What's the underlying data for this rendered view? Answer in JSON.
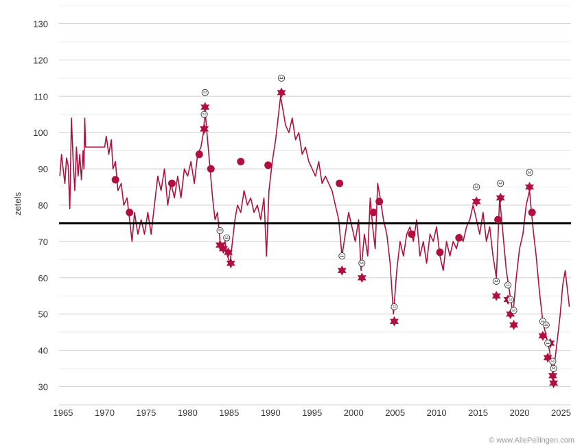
{
  "chart_data": {
    "type": "line",
    "ylabel": "zetels",
    "xlim": [
      1964.5,
      2026.2
    ],
    "ylim": [
      25,
      135
    ],
    "x_ticks": [
      1965,
      1970,
      1975,
      1980,
      1985,
      1990,
      1995,
      2000,
      2005,
      2010,
      2015,
      2020,
      2025
    ],
    "y_ticks": [
      30,
      40,
      50,
      60,
      70,
      80,
      90,
      100,
      110,
      120,
      130
    ],
    "grid": true,
    "legend": "none",
    "reference_line": {
      "value": 75,
      "color": "#000000"
    },
    "series_color": "#b0103f",
    "series": [
      {
        "points": [
          [
            1964.6,
            88
          ],
          [
            1964.8,
            94
          ],
          [
            1965.0,
            90
          ],
          [
            1965.2,
            86
          ],
          [
            1965.4,
            93
          ],
          [
            1965.6,
            91
          ],
          [
            1965.8,
            79
          ],
          [
            1966.0,
            104
          ],
          [
            1966.2,
            92
          ],
          [
            1966.4,
            84
          ],
          [
            1966.6,
            96
          ],
          [
            1966.8,
            88
          ],
          [
            1967.0,
            94
          ],
          [
            1967.2,
            87
          ],
          [
            1967.4,
            95
          ],
          [
            1967.5,
            90
          ],
          [
            1967.6,
            104
          ],
          [
            1967.7,
            96
          ],
          [
            1970.0,
            96
          ],
          [
            1970.2,
            99
          ],
          [
            1970.5,
            94
          ],
          [
            1970.8,
            98
          ],
          [
            1971.0,
            90
          ],
          [
            1971.3,
            92
          ],
          [
            1971.6,
            84
          ],
          [
            1972.0,
            86
          ],
          [
            1972.3,
            80
          ],
          [
            1972.7,
            82
          ],
          [
            1973.0,
            76
          ],
          [
            1973.3,
            70
          ],
          [
            1973.6,
            78
          ],
          [
            1974.0,
            72
          ],
          [
            1974.4,
            76
          ],
          [
            1974.8,
            72
          ],
          [
            1975.2,
            78
          ],
          [
            1975.6,
            72
          ],
          [
            1976.0,
            80
          ],
          [
            1976.4,
            88
          ],
          [
            1976.8,
            84
          ],
          [
            1977.2,
            90
          ],
          [
            1977.6,
            80
          ],
          [
            1978.0,
            86
          ],
          [
            1978.4,
            82
          ],
          [
            1978.8,
            88
          ],
          [
            1979.2,
            82
          ],
          [
            1979.6,
            90
          ],
          [
            1980.0,
            88
          ],
          [
            1980.4,
            92
          ],
          [
            1980.8,
            86
          ],
          [
            1981.2,
            94
          ],
          [
            1981.6,
            96
          ],
          [
            1981.9,
            100
          ],
          [
            1982.1,
            106
          ],
          [
            1982.4,
            98
          ],
          [
            1982.7,
            90
          ],
          [
            1983.0,
            82
          ],
          [
            1983.3,
            76
          ],
          [
            1983.6,
            78
          ],
          [
            1983.9,
            70
          ],
          [
            1984.2,
            68
          ],
          [
            1984.5,
            70
          ],
          [
            1984.8,
            66
          ],
          [
            1985.1,
            64
          ],
          [
            1985.4,
            70
          ],
          [
            1985.7,
            76
          ],
          [
            1986.0,
            80
          ],
          [
            1986.4,
            78
          ],
          [
            1986.8,
            84
          ],
          [
            1987.2,
            80
          ],
          [
            1987.6,
            82
          ],
          [
            1988.0,
            78
          ],
          [
            1988.4,
            80
          ],
          [
            1988.8,
            76
          ],
          [
            1989.2,
            82
          ],
          [
            1989.5,
            66
          ],
          [
            1989.8,
            84
          ],
          [
            1990.2,
            92
          ],
          [
            1990.6,
            98
          ],
          [
            1990.9,
            104
          ],
          [
            1991.2,
            110
          ],
          [
            1991.5,
            106
          ],
          [
            1991.8,
            102
          ],
          [
            1992.2,
            100
          ],
          [
            1992.6,
            104
          ],
          [
            1993.0,
            98
          ],
          [
            1993.4,
            100
          ],
          [
            1993.8,
            94
          ],
          [
            1994.2,
            96
          ],
          [
            1994.6,
            92
          ],
          [
            1995.0,
            90
          ],
          [
            1995.4,
            88
          ],
          [
            1995.8,
            92
          ],
          [
            1996.2,
            86
          ],
          [
            1996.6,
            88
          ],
          [
            1997.0,
            86
          ],
          [
            1997.4,
            84
          ],
          [
            1997.8,
            80
          ],
          [
            1998.2,
            76
          ],
          [
            1998.6,
            66
          ],
          [
            1999.0,
            72
          ],
          [
            1999.4,
            78
          ],
          [
            1999.8,
            74
          ],
          [
            2000.2,
            70
          ],
          [
            2000.6,
            76
          ],
          [
            2000.9,
            62
          ],
          [
            2001.3,
            72
          ],
          [
            2001.7,
            66
          ],
          [
            2002.0,
            82
          ],
          [
            2002.3,
            74
          ],
          [
            2002.6,
            68
          ],
          [
            2002.9,
            86
          ],
          [
            2003.2,
            82
          ],
          [
            2003.6,
            76
          ],
          [
            2004.0,
            72
          ],
          [
            2004.4,
            64
          ],
          [
            2004.8,
            50
          ],
          [
            2005.2,
            62
          ],
          [
            2005.6,
            70
          ],
          [
            2006.0,
            66
          ],
          [
            2006.4,
            72
          ],
          [
            2006.8,
            74
          ],
          [
            2007.2,
            70
          ],
          [
            2007.6,
            76
          ],
          [
            2008.0,
            66
          ],
          [
            2008.4,
            70
          ],
          [
            2008.8,
            64
          ],
          [
            2009.2,
            72
          ],
          [
            2009.6,
            70
          ],
          [
            2010.0,
            74
          ],
          [
            2010.4,
            66
          ],
          [
            2010.8,
            62
          ],
          [
            2011.2,
            70
          ],
          [
            2011.6,
            66
          ],
          [
            2012.0,
            70
          ],
          [
            2012.4,
            68
          ],
          [
            2012.8,
            72
          ],
          [
            2013.2,
            70
          ],
          [
            2013.6,
            74
          ],
          [
            2014.0,
            76
          ],
          [
            2014.4,
            80
          ],
          [
            2014.8,
            76
          ],
          [
            2015.2,
            72
          ],
          [
            2015.6,
            78
          ],
          [
            2016.0,
            70
          ],
          [
            2016.4,
            74
          ],
          [
            2016.8,
            66
          ],
          [
            2017.2,
            60
          ],
          [
            2017.6,
            82
          ],
          [
            2018.0,
            72
          ],
          [
            2018.4,
            62
          ],
          [
            2018.8,
            56
          ],
          [
            2019.2,
            50
          ],
          [
            2019.6,
            60
          ],
          [
            2020.0,
            68
          ],
          [
            2020.4,
            72
          ],
          [
            2020.8,
            80
          ],
          [
            2021.2,
            84
          ],
          [
            2021.6,
            74
          ],
          [
            2022.0,
            66
          ],
          [
            2022.4,
            56
          ],
          [
            2022.8,
            48
          ],
          [
            2023.2,
            44
          ],
          [
            2023.6,
            40
          ],
          [
            2024.0,
            34
          ],
          [
            2024.3,
            38
          ],
          [
            2024.6,
            44
          ],
          [
            2024.9,
            50
          ],
          [
            2025.2,
            58
          ],
          [
            2025.5,
            62
          ],
          [
            2025.8,
            56
          ],
          [
            2026.0,
            52
          ]
        ]
      }
    ],
    "markers": {
      "circles": [
        [
          1971.3,
          87
        ],
        [
          1973.0,
          78
        ],
        [
          1978.1,
          86
        ],
        [
          1981.4,
          94
        ],
        [
          1982.8,
          90
        ],
        [
          1986.4,
          92
        ],
        [
          1989.7,
          91
        ],
        [
          1998.3,
          86
        ],
        [
          2002.4,
          78
        ],
        [
          2003.1,
          81
        ],
        [
          2007.0,
          72
        ],
        [
          2010.4,
          67
        ],
        [
          2012.7,
          71
        ],
        [
          2017.4,
          76
        ],
        [
          2021.5,
          78
        ]
      ],
      "stars": [
        [
          1982.1,
          107
        ],
        [
          1982.0,
          101
        ],
        [
          1983.9,
          69
        ],
        [
          1984.3,
          68
        ],
        [
          1984.9,
          67
        ],
        [
          1985.2,
          64
        ],
        [
          1991.3,
          111
        ],
        [
          1998.6,
          62
        ],
        [
          2001.0,
          60
        ],
        [
          2004.9,
          48
        ],
        [
          2014.8,
          81
        ],
        [
          2017.2,
          55
        ],
        [
          2017.7,
          82
        ],
        [
          2018.6,
          54
        ],
        [
          2018.9,
          50
        ],
        [
          2019.3,
          47
        ],
        [
          2021.2,
          85
        ],
        [
          2022.8,
          44
        ],
        [
          2023.4,
          38
        ],
        [
          2023.7,
          42
        ],
        [
          2024.0,
          33
        ],
        [
          2024.1,
          31
        ]
      ],
      "smileys": [
        [
          1982.1,
          111
        ],
        [
          1982.0,
          105
        ],
        [
          1983.9,
          73
        ],
        [
          1984.7,
          71
        ],
        [
          1991.3,
          115
        ],
        [
          1998.6,
          66
        ],
        [
          2001.0,
          64
        ],
        [
          2004.9,
          52
        ],
        [
          2014.8,
          85
        ],
        [
          2017.2,
          59
        ],
        [
          2017.7,
          86
        ],
        [
          2018.6,
          58
        ],
        [
          2018.9,
          54
        ],
        [
          2019.3,
          51
        ],
        [
          2021.2,
          89
        ],
        [
          2022.8,
          48
        ],
        [
          2023.2,
          47
        ],
        [
          2023.4,
          42
        ],
        [
          2024.0,
          37
        ],
        [
          2024.1,
          35
        ]
      ]
    }
  },
  "credit": "© www.AllePeilingen.com"
}
